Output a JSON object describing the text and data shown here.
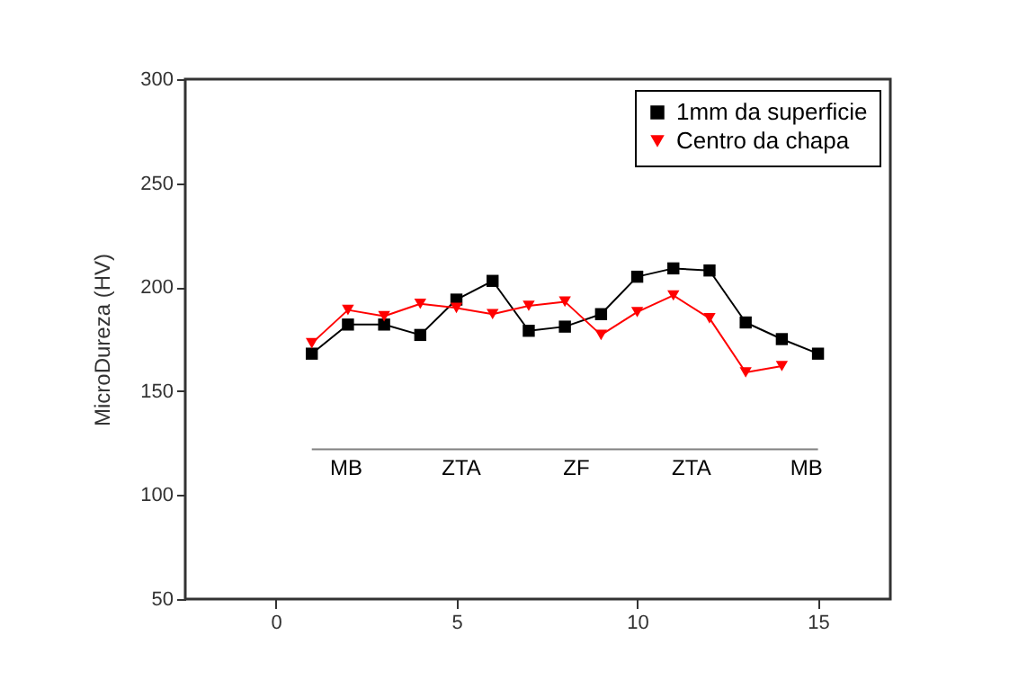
{
  "chart_data": {
    "type": "line",
    "ylabel": "MicroDureza (HV)",
    "x": [
      1,
      2,
      3,
      4,
      5,
      6,
      7,
      8,
      9,
      10,
      11,
      12,
      13,
      14,
      15
    ],
    "series": [
      {
        "name": "1mm da superficie",
        "color": "#000000",
        "marker": "square",
        "values": [
          168,
          182,
          182,
          177,
          194,
          203,
          179,
          181,
          187,
          205,
          209,
          208,
          183,
          175,
          168
        ]
      },
      {
        "name": "Centro da chapa",
        "color": "#ff0000",
        "marker": "triangle",
        "values": [
          173,
          189,
          186,
          192,
          190,
          187,
          191,
          193,
          177,
          188,
          196,
          185,
          159,
          162,
          null
        ]
      },
      {
        "type": "line",
        "color": "#808080",
        "marker": "none",
        "x": [
          1,
          15
        ],
        "values": [
          122,
          122
        ]
      }
    ],
    "annotations": [
      "MB",
      "ZTA",
      "ZF",
      "ZTA",
      "MB"
    ],
    "xlim": [
      -2.5,
      17
    ],
    "ylim": [
      50,
      300
    ],
    "xticks": [
      0,
      5,
      10,
      15
    ],
    "yticks": [
      50,
      100,
      150,
      200,
      250,
      300
    ],
    "grid": false,
    "legend": "top right",
    "line_style": "solid"
  }
}
